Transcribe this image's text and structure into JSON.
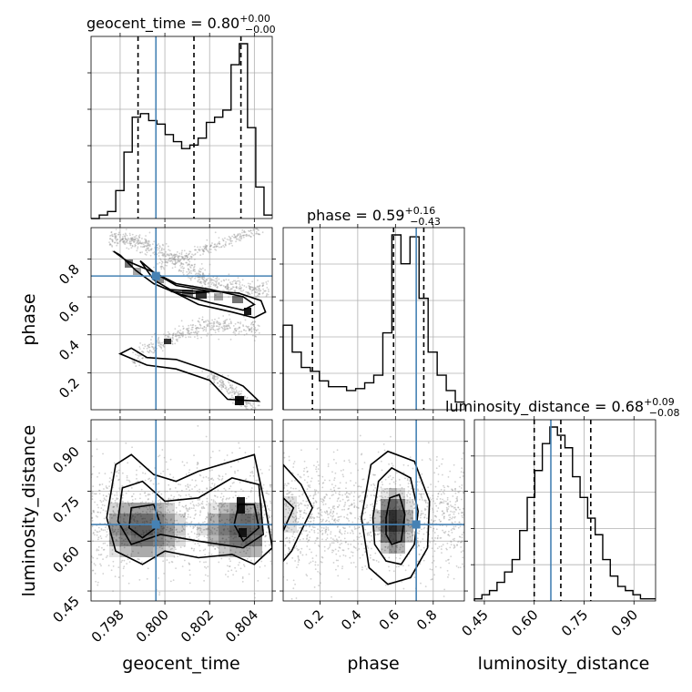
{
  "colors": {
    "truth": "#4682b4",
    "line": "#000000",
    "grid": "#b0b0b0",
    "scatter": "#999999"
  },
  "chart_data": {
    "type": "corner",
    "parameters": [
      "geocent_time",
      "phase",
      "luminosity_distance"
    ],
    "truths": {
      "geocent_time": 0.7996,
      "phase": 0.71,
      "luminosity_distance": 0.65
    },
    "ranges": {
      "geocent_time": [
        0.7967,
        0.8048
      ],
      "phase": [
        0.005,
        0.965
      ],
      "luminosity_distance": [
        0.42,
        0.965
      ]
    },
    "ticks": {
      "geocent_time": [
        "0.798",
        "0.800",
        "0.802",
        "0.804"
      ],
      "phase": [
        "0.2",
        "0.4",
        "0.6",
        "0.8"
      ],
      "luminosity_distance": [
        "0.45",
        "0.60",
        "0.75",
        "0.90"
      ]
    },
    "titles": {
      "geocent_time": {
        "main": "geocent_time = 0.80",
        "plus": "+0.00",
        "minus": "−0.00"
      },
      "phase": {
        "main": "phase = 0.59",
        "plus": "+0.16",
        "minus": "−0.43"
      },
      "luminosity_distance": {
        "main": "luminosity_distance = 0.68",
        "plus": "+0.09",
        "minus": "−0.08"
      }
    },
    "quantiles": {
      "geocent_time": [
        0.7988,
        0.8013,
        0.8034
      ],
      "phase": [
        0.16,
        0.59,
        0.75
      ],
      "luminosity_distance": [
        0.6,
        0.68,
        0.77
      ]
    },
    "histograms": {
      "geocent_time": {
        "min": 0.7967,
        "max": 0.8048,
        "counts": [
          0,
          2,
          4,
          16,
          38,
          58,
          60,
          56,
          54,
          48,
          44,
          40,
          42,
          46,
          55,
          58,
          62,
          88,
          100,
          52,
          18,
          2
        ]
      },
      "phase": {
        "min": 0.005,
        "max": 0.965,
        "counts": [
          44,
          30,
          22,
          20,
          15,
          12,
          12,
          10,
          11,
          14,
          18,
          40,
          91,
          76,
          90,
          58,
          30,
          18,
          10,
          4
        ]
      },
      "luminosity_distance": {
        "min": 0.42,
        "max": 0.965,
        "counts": [
          1,
          3,
          5,
          9,
          14,
          20,
          34,
          50,
          63,
          76,
          84,
          80,
          74,
          60,
          50,
          40,
          32,
          20,
          12,
          7,
          5,
          3,
          1,
          1
        ]
      }
    },
    "contours": {
      "phase_vs_geocent_time": [
        [
          [
            0.798,
            0.82
          ],
          [
            0.7977,
            0.84
          ],
          [
            0.7983,
            0.79
          ],
          [
            0.7995,
            0.73
          ],
          [
            0.8005,
            0.66
          ],
          [
            0.802,
            0.63
          ],
          [
            0.8033,
            0.62
          ],
          [
            0.8043,
            0.58
          ],
          [
            0.8045,
            0.52
          ],
          [
            0.804,
            0.49
          ],
          [
            0.803,
            0.52
          ],
          [
            0.8015,
            0.56
          ],
          [
            0.8005,
            0.62
          ],
          [
            0.7995,
            0.67
          ],
          [
            0.7987,
            0.74
          ]
        ],
        [
          [
            0.7989,
            0.79
          ],
          [
            0.7995,
            0.73
          ],
          [
            0.8005,
            0.67
          ],
          [
            0.802,
            0.64
          ],
          [
            0.8035,
            0.6
          ],
          [
            0.804,
            0.56
          ],
          [
            0.8035,
            0.53
          ],
          [
            0.802,
            0.57
          ],
          [
            0.8005,
            0.62
          ],
          [
            0.7995,
            0.69
          ]
        ],
        [
          [
            0.8002,
            0.638
          ],
          [
            0.8011,
            0.632
          ],
          [
            0.802,
            0.626
          ],
          [
            0.8012,
            0.618
          ],
          [
            0.8003,
            0.628
          ]
        ],
        [
          [
            0.8028,
            0.06
          ],
          [
            0.802,
            0.16
          ],
          [
            0.8005,
            0.22
          ],
          [
            0.7992,
            0.24
          ],
          [
            0.798,
            0.3
          ],
          [
            0.7985,
            0.33
          ],
          [
            0.7992,
            0.28
          ],
          [
            0.8005,
            0.27
          ],
          [
            0.802,
            0.21
          ],
          [
            0.8035,
            0.13
          ],
          [
            0.8042,
            0.05
          ]
        ]
      ],
      "luminosity_distance_vs_geocent_time": [
        [
          [
            0.7978,
            0.83
          ],
          [
            0.7985,
            0.86
          ],
          [
            0.7995,
            0.8
          ],
          [
            0.8005,
            0.78
          ],
          [
            0.8015,
            0.81
          ],
          [
            0.803,
            0.84
          ],
          [
            0.804,
            0.86
          ],
          [
            0.8045,
            0.7
          ],
          [
            0.8048,
            0.58
          ],
          [
            0.804,
            0.53
          ],
          [
            0.803,
            0.56
          ],
          [
            0.8015,
            0.55
          ],
          [
            0.8,
            0.57
          ],
          [
            0.799,
            0.53
          ],
          [
            0.7978,
            0.57
          ],
          [
            0.7974,
            0.67
          ]
        ],
        [
          [
            0.7981,
            0.76
          ],
          [
            0.799,
            0.78
          ],
          [
            0.8,
            0.72
          ],
          [
            0.8015,
            0.73
          ],
          [
            0.803,
            0.79
          ],
          [
            0.8042,
            0.77
          ],
          [
            0.8044,
            0.62
          ],
          [
            0.8035,
            0.58
          ],
          [
            0.8015,
            0.6
          ],
          [
            0.7998,
            0.62
          ],
          [
            0.7985,
            0.59
          ],
          [
            0.7979,
            0.66
          ]
        ],
        [
          [
            0.7985,
            0.7
          ],
          [
            0.7995,
            0.71
          ],
          [
            0.7998,
            0.65
          ],
          [
            0.799,
            0.61
          ],
          [
            0.7984,
            0.64
          ]
        ],
        [
          [
            0.8033,
            0.71
          ],
          [
            0.804,
            0.71
          ],
          [
            0.8042,
            0.64
          ],
          [
            0.8035,
            0.6
          ],
          [
            0.8031,
            0.65
          ]
        ]
      ],
      "luminosity_distance_vs_phase": [
        [
          [
            0.005,
            0.83
          ],
          [
            0.1,
            0.77
          ],
          [
            0.16,
            0.7
          ],
          [
            0.1,
            0.63
          ],
          [
            0.05,
            0.57
          ],
          [
            0.005,
            0.54
          ]
        ],
        [
          [
            0.005,
            0.73
          ],
          [
            0.06,
            0.7
          ],
          [
            0.005,
            0.63
          ]
        ],
        [
          [
            0.42,
            0.67
          ],
          [
            0.47,
            0.83
          ],
          [
            0.56,
            0.87
          ],
          [
            0.7,
            0.84
          ],
          [
            0.78,
            0.72
          ],
          [
            0.77,
            0.58
          ],
          [
            0.68,
            0.49
          ],
          [
            0.56,
            0.47
          ],
          [
            0.46,
            0.52
          ]
        ],
        [
          [
            0.48,
            0.67
          ],
          [
            0.51,
            0.78
          ],
          [
            0.58,
            0.82
          ],
          [
            0.68,
            0.79
          ],
          [
            0.72,
            0.69
          ],
          [
            0.7,
            0.59
          ],
          [
            0.63,
            0.53
          ],
          [
            0.55,
            0.54
          ],
          [
            0.49,
            0.59
          ]
        ],
        [
          [
            0.55,
            0.67
          ],
          [
            0.57,
            0.73
          ],
          [
            0.62,
            0.74
          ],
          [
            0.65,
            0.68
          ],
          [
            0.63,
            0.6
          ],
          [
            0.58,
            0.59
          ],
          [
            0.55,
            0.62
          ]
        ]
      ]
    }
  }
}
